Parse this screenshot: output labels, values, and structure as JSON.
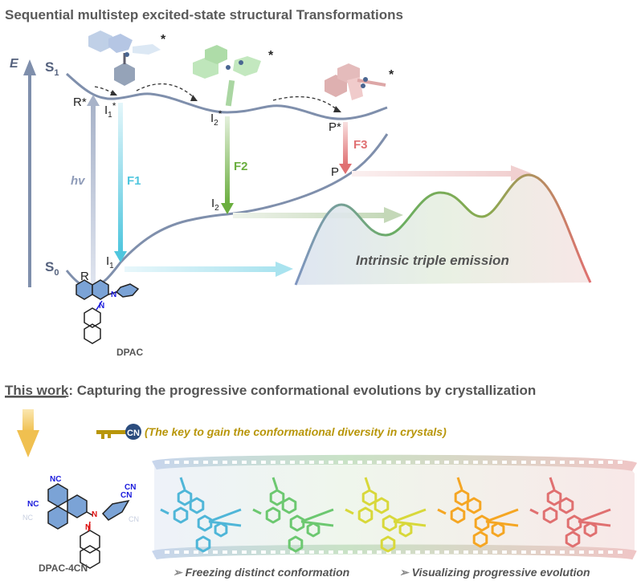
{
  "top_title": "Sequential multistep excited-state structural Transformations",
  "energy_axis": "E",
  "states": {
    "s1": "S",
    "s1_sub": "1",
    "s0": "S",
    "s0_sub": "0"
  },
  "points": {
    "r_star": "R*",
    "i1_star": "I",
    "i1_star_sub": "1",
    "i2_star": "I",
    "i2_star_sub": "2",
    "p_star": "P*",
    "r": "R",
    "i1": "I",
    "i1_sub": "1",
    "i2": "I",
    "i2_sub": "2",
    "p": "P",
    "star": "*"
  },
  "transitions": {
    "hv": "hv",
    "f1": "F1",
    "f2": "F2",
    "f3": "F3"
  },
  "emission_label": "Intrinsic triple emission",
  "dpac_label": "DPAC",
  "bottom_title_prefix": "This work",
  "bottom_title_rest": ": Capturing the progressive conformational evolutions by crystallization",
  "key_badge": "CN",
  "key_text": "(The key to gain the conformational diversity in crystals)",
  "dpac4cn": {
    "label": "DPAC-4CN",
    "nc": "NC",
    "cn": "CN",
    "n": "N"
  },
  "captions": [
    "Freezing distinct conformation",
    "Visualizing progressive evolution"
  ],
  "colors": {
    "curve": "#7f8fac",
    "f1": "#4fc6de",
    "f2": "#6aae3e",
    "f3": "#e07072",
    "key": "#b8960a",
    "text": "#555555",
    "cn_blue": "#1a1adc",
    "n_red": "#dd1111",
    "conformers": [
      "#4fb6d8",
      "#6cc870",
      "#d8d83a",
      "#f5a623",
      "#e07070"
    ]
  }
}
